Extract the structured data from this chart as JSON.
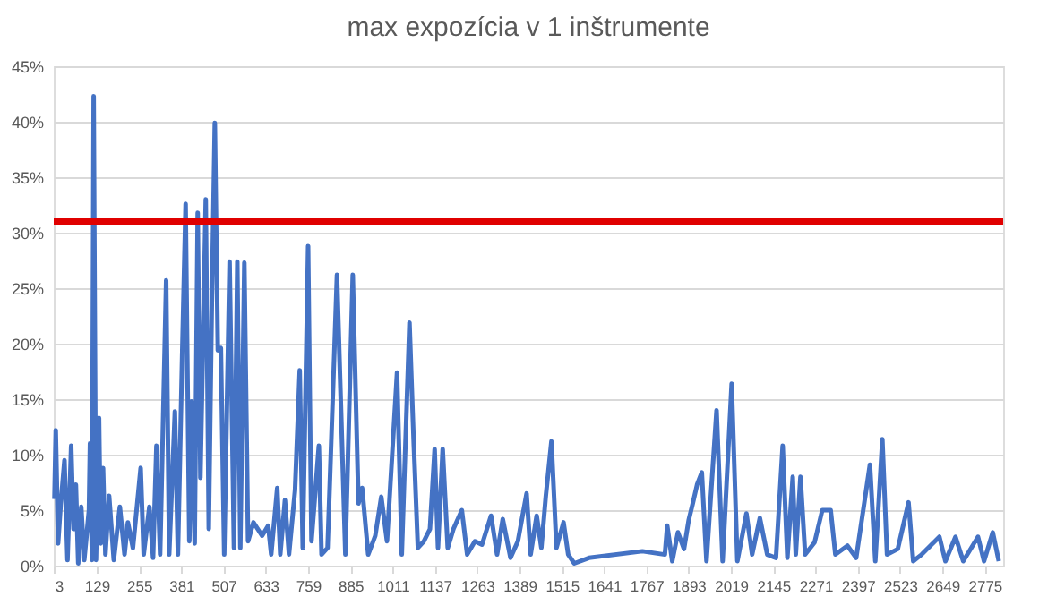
{
  "chart_data": {
    "type": "line",
    "title": "max expozícia v 1 inštrumente",
    "x": [
      3,
      7,
      14,
      22,
      33,
      42,
      53,
      60,
      67,
      74,
      83,
      92,
      106,
      109,
      115,
      120,
      127,
      136,
      141,
      148,
      155,
      166,
      180,
      198,
      212,
      222,
      237,
      260,
      269,
      286,
      297,
      307,
      318,
      336,
      345,
      362,
      371,
      384,
      394,
      405,
      412,
      421,
      430,
      438,
      454,
      463,
      472,
      481,
      490,
      499,
      509,
      525,
      538,
      548,
      557,
      569,
      580,
      596,
      622,
      640,
      649,
      667,
      676,
      690,
      702,
      720,
      734,
      743,
      759,
      769,
      791,
      799,
      817,
      845,
      870,
      892,
      909,
      920,
      938,
      959,
      977,
      994,
      1024,
      1038,
      1061,
      1074,
      1086,
      1104,
      1122,
      1136,
      1146,
      1160,
      1175,
      1192,
      1217,
      1233,
      1256,
      1277,
      1304,
      1322,
      1339,
      1362,
      1384,
      1410,
      1422,
      1440,
      1454,
      1467,
      1484,
      1499,
      1520,
      1534,
      1552,
      1596,
      1755,
      1822,
      1829,
      1844,
      1861,
      1879,
      1893,
      1905,
      1918,
      1932,
      1946,
      1976,
      1994,
      2021,
      2038,
      2065,
      2082,
      2105,
      2127,
      2153,
      2173,
      2187,
      2203,
      2212,
      2226,
      2240,
      2268,
      2291,
      2316,
      2330,
      2366,
      2392,
      2433,
      2449,
      2470,
      2484,
      2516,
      2548,
      2562,
      2587,
      2640,
      2658,
      2688,
      2711,
      2755,
      2773,
      2799,
      2817
    ],
    "series": [
      {
        "color": "#4472c4",
        "values": [
          6,
          12.2,
          2,
          5.6,
          9.5,
          0.5,
          10.8,
          3.3,
          7.3,
          0.2,
          5.3,
          0.5,
          5,
          11,
          0.5,
          42.3,
          0.5,
          13.3,
          2,
          8.8,
          1,
          6.3,
          0.5,
          5.3,
          1,
          3.9,
          1.6,
          8.8,
          1,
          5.3,
          0.7,
          10.8,
          1,
          25.7,
          1,
          13.9,
          1,
          19.4,
          32.6,
          2.2,
          14.8,
          2,
          31.8,
          7.9,
          33,
          3.3,
          23.4,
          39.9,
          19.4,
          19.6,
          1,
          27.4,
          1.6,
          27.4,
          1.6,
          27.3,
          2.2,
          3.9,
          2.7,
          3.6,
          1,
          7,
          1,
          5.9,
          1,
          6.8,
          17.6,
          1.6,
          28.8,
          2.2,
          10.8,
          1,
          1.6,
          26.2,
          1,
          26.2,
          5.6,
          7,
          1,
          2.7,
          6.2,
          2.2,
          17.4,
          1,
          21.9,
          10.8,
          1.6,
          2.2,
          3.3,
          10.5,
          1.6,
          10.5,
          1.6,
          3.3,
          5,
          1,
          2.2,
          1.9,
          4.5,
          1,
          4.2,
          0.7,
          2.2,
          6.5,
          1,
          4.5,
          1.6,
          6.2,
          11.2,
          1.6,
          3.9,
          1,
          0.2,
          0.7,
          1.3,
          1,
          3.6,
          0.4,
          3,
          1.5,
          4.1,
          5.6,
          7.3,
          8.4,
          0.4,
          14,
          0.4,
          16.4,
          0.4,
          4.7,
          1,
          4.3,
          1,
          0.7,
          10.8,
          0.7,
          8,
          1,
          8,
          1,
          2.1,
          5,
          5,
          1,
          1.8,
          0.7,
          9.1,
          0.4,
          11.4,
          1,
          1.5,
          5.7,
          0.4,
          1,
          2.6,
          0.4,
          2.6,
          0.4,
          2.6,
          0.4,
          3,
          0.4
        ]
      }
    ],
    "xlim": [
      1,
      2830
    ],
    "xticks": [
      3,
      129,
      255,
      381,
      507,
      633,
      759,
      885,
      1011,
      1137,
      1263,
      1389,
      1515,
      1641,
      1767,
      1893,
      2019,
      2145,
      2271,
      2397,
      2523,
      2649,
      2775
    ],
    "ylim": [
      0,
      45
    ],
    "yticks": [
      {
        "value": 0,
        "label": "0%"
      },
      {
        "value": 5,
        "label": "5%"
      },
      {
        "value": 10,
        "label": "10%"
      },
      {
        "value": 15,
        "label": "15%"
      },
      {
        "value": 20,
        "label": "20%"
      },
      {
        "value": 25,
        "label": "25%"
      },
      {
        "value": 30,
        "label": "30%"
      },
      {
        "value": 35,
        "label": "35%"
      },
      {
        "value": 40,
        "label": "40%"
      },
      {
        "value": 45,
        "label": "45%"
      }
    ],
    "ref_lines": [
      {
        "axis": "y",
        "value": 31,
        "color": "#e00000",
        "line_style": "solid"
      }
    ],
    "grid": "y",
    "marker": "none",
    "line_style": "solid"
  }
}
